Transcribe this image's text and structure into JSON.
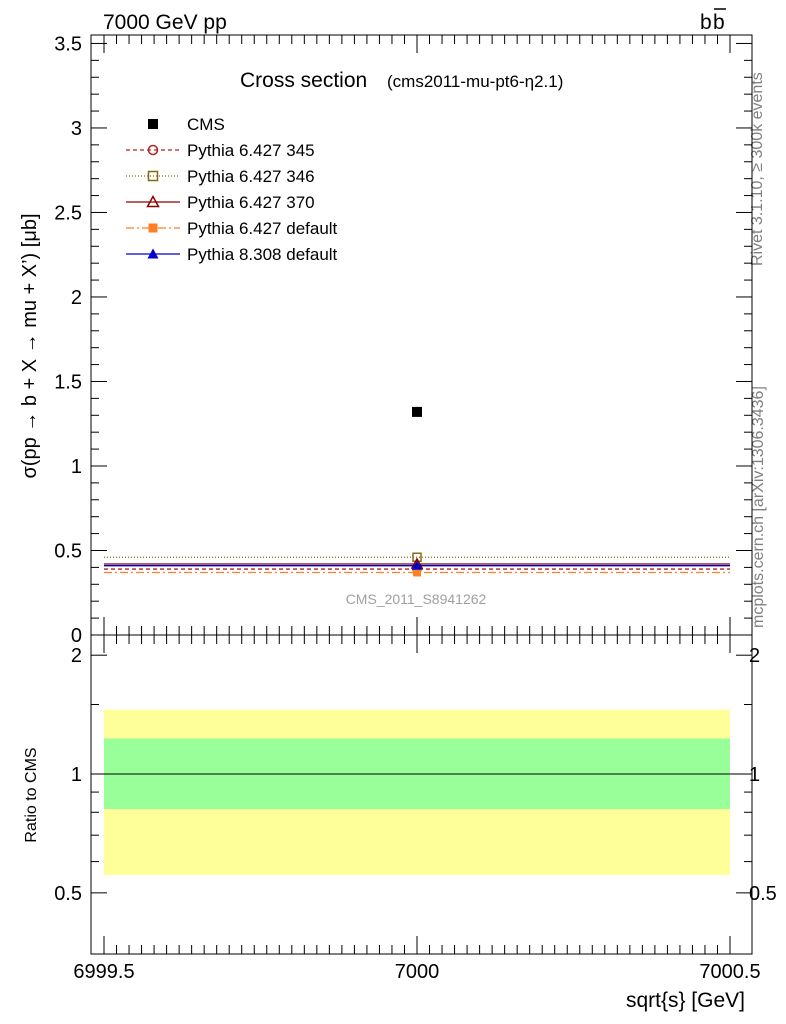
{
  "header": {
    "left": "7000 GeV pp",
    "right_prefix": "b",
    "right_bar": "b"
  },
  "side_text": {
    "rivet": "Rivet 3.1.10, ≥ 300k events",
    "mcplots": "mcplots.cern.ch [arXiv:1306.3436]"
  },
  "chart_data": [
    {
      "type": "scatter",
      "panel": "main",
      "title": "Cross section",
      "subtitle": "(cms2011-mu-pt6-η2.1)",
      "ylabel": "σ(pp → b + X → mu + X’) [μb]",
      "xlim": [
        6999.5,
        7000.5
      ],
      "ylim": [
        0,
        3.55
      ],
      "yticks": [
        0,
        0.5,
        1,
        1.5,
        2,
        2.5,
        3,
        3.5
      ],
      "ytick_labels": [
        "0",
        "0.5",
        "1",
        "1.5",
        "2",
        "2.5",
        "3",
        "3.5"
      ],
      "watermark": "CMS_2011_S8941262",
      "legend_position": "top-left",
      "series": [
        {
          "name": "CMS",
          "kind": "data",
          "x": [
            7000
          ],
          "y": [
            1.32
          ],
          "color": "#000000",
          "marker": "square-filled"
        },
        {
          "name": "Pythia 6.427 345",
          "kind": "mc",
          "x_range": [
            6999.5,
            7000.5
          ],
          "y": 0.39,
          "color": "#b22222",
          "dash": "4,3",
          "marker": "circle-open"
        },
        {
          "name": "Pythia 6.427 346",
          "kind": "mc",
          "x_range": [
            6999.5,
            7000.5
          ],
          "y": 0.46,
          "color": "#8b6914",
          "dash": "1,2",
          "marker": "square-open"
        },
        {
          "name": "Pythia 6.427 370",
          "kind": "mc",
          "x_range": [
            6999.5,
            7000.5
          ],
          "y": 0.42,
          "color": "#8b0000",
          "dash": "",
          "marker": "triangle-open"
        },
        {
          "name": "Pythia 6.427 default",
          "kind": "mc",
          "x_range": [
            6999.5,
            7000.5
          ],
          "y": 0.37,
          "color": "#ff7f24",
          "dash": "8,3,2,3",
          "marker": "square-filled"
        },
        {
          "name": "Pythia 8.308 default",
          "kind": "mc",
          "x_range": [
            6999.5,
            7000.5
          ],
          "y": 0.41,
          "color": "#0000cd",
          "dash": "",
          "marker": "triangle-filled"
        }
      ]
    },
    {
      "type": "area",
      "panel": "ratio",
      "ylabel": "Ratio to CMS",
      "xlabel": "sqrt{s} [GeV]",
      "xlim": [
        6999.5,
        7000.5
      ],
      "ylim": [
        0.35,
        2.25
      ],
      "yticks": [
        0.5,
        1,
        2
      ],
      "ytick_labels": [
        "0.5",
        "1",
        "2"
      ],
      "xticks": [
        6999.5,
        7000,
        7000.5
      ],
      "xtick_labels": [
        "6999.5",
        "7000",
        "7000.5"
      ],
      "bands": [
        {
          "name": "outer",
          "low": 0.555,
          "high": 1.455,
          "color": "#ffff99"
        },
        {
          "name": "inner",
          "low": 0.815,
          "high": 1.23,
          "color": "#99ff99"
        }
      ],
      "reference_line": 1
    }
  ]
}
